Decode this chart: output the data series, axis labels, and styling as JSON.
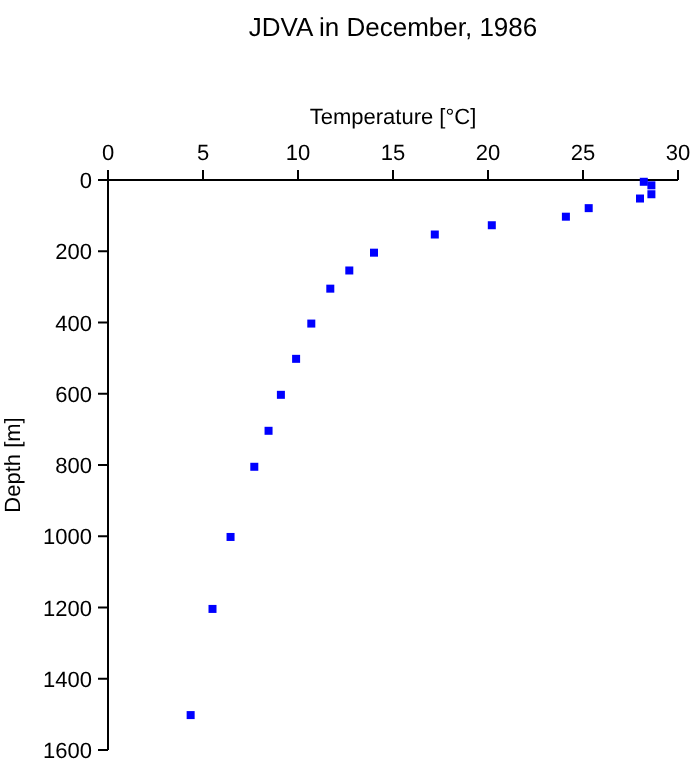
{
  "chart_data": {
    "type": "scatter",
    "title": "JDVA in December, 1986",
    "xlabel": "Temperature [°C]",
    "ylabel": "Depth [m]",
    "x": [
      28.2,
      28.6,
      28.6,
      28.0,
      25.3,
      24.1,
      20.2,
      17.2,
      14.0,
      12.7,
      11.7,
      10.7,
      9.9,
      9.1,
      8.45,
      7.7,
      6.45,
      5.5,
      4.35
    ],
    "series": [
      {
        "color": "#0000ff",
        "values": [
          5,
          15,
          40,
          52,
          79,
          103,
          127,
          153,
          204,
          254,
          305,
          403,
          502,
          603,
          704,
          805,
          1002,
          1204,
          1502
        ]
      }
    ],
    "xlim": [
      0,
      30
    ],
    "xticks": [
      0,
      5,
      10,
      15,
      20,
      25,
      30
    ],
    "ylim": [
      1600,
      0
    ],
    "yticks": [
      0,
      200,
      400,
      600,
      800,
      1000,
      1200,
      1400,
      1600
    ],
    "marker": "square"
  }
}
